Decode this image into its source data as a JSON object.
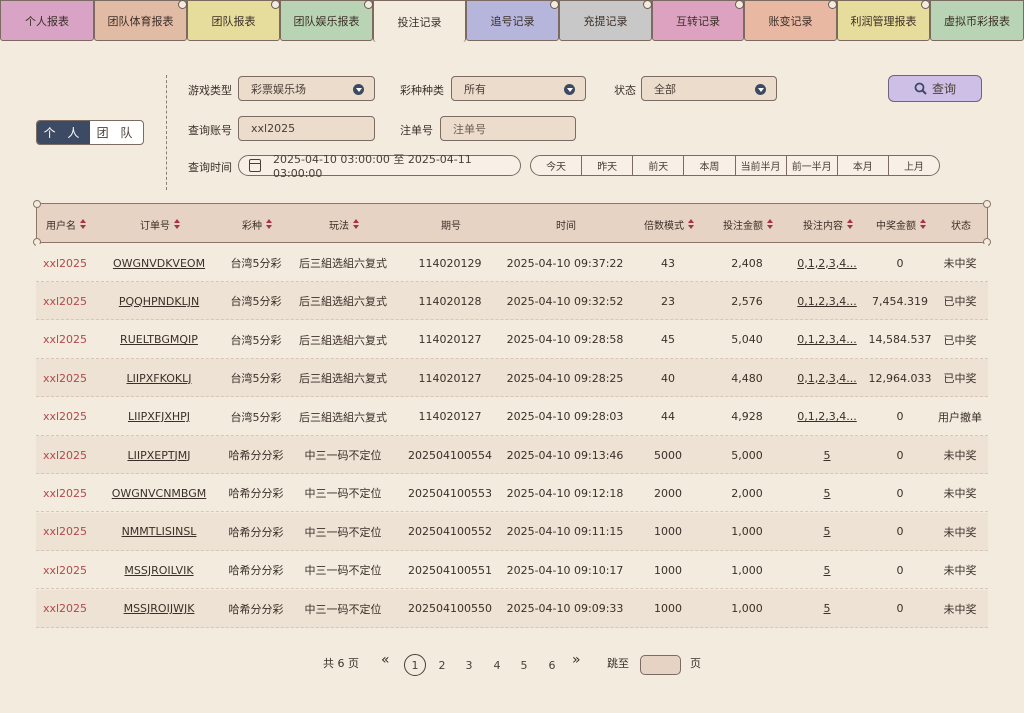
{
  "tabs": [
    {
      "label": "个人报表",
      "color": "#d9a3c6",
      "active": false
    },
    {
      "label": "团队体育报表",
      "color": "#e2bba5",
      "active": false
    },
    {
      "label": "团队报表",
      "color": "#e6dc9c",
      "active": false
    },
    {
      "label": "团队娱乐报表",
      "color": "#b8d4b4",
      "active": false
    },
    {
      "label": "投注记录",
      "color": "#f4ebdf",
      "active": true
    },
    {
      "label": "追号记录",
      "color": "#b6b6dc",
      "active": false
    },
    {
      "label": "充提记录",
      "color": "#c8c8c8",
      "active": false
    },
    {
      "label": "互转记录",
      "color": "#dda2c0",
      "active": false
    },
    {
      "label": "账变记录",
      "color": "#e8b8a2",
      "active": false
    },
    {
      "label": "利润管理报表",
      "color": "#e6dc9c",
      "active": false
    },
    {
      "label": "虚拟币彩报表",
      "color": "#b8d4b4",
      "active": false
    }
  ],
  "scope": {
    "personal": "个 人",
    "team": "团 队"
  },
  "filters": {
    "game_type_label": "游戏类型",
    "game_type_value": "彩票娱乐场",
    "lottery_label": "彩种种类",
    "lottery_value": "所有",
    "status_label": "状态",
    "status_value": "全部",
    "account_label": "查询账号",
    "account_value": "xxl2025",
    "order_label": "注单号",
    "order_placeholder": "注单号",
    "time_label": "查询时间",
    "time_range": "2025-04-10 03:00:00 至 2025-04-11 03:00:00",
    "quick_ranges": [
      "今天",
      "昨天",
      "前天",
      "本周",
      "当前半月",
      "前一半月",
      "本月",
      "上月"
    ],
    "search_label": "查询"
  },
  "table": {
    "headers": [
      "用户名",
      "订单号",
      "彩种",
      "玩法",
      "期号",
      "时间",
      "倍数模式",
      "投注金额",
      "投注内容",
      "中奖金额",
      "状态"
    ],
    "rows": [
      [
        "xxl2025",
        "OWGNVDKVEOM",
        "台湾5分彩",
        "后三組选組六复式",
        "114020129",
        "2025-04-10 09:37:22",
        "43",
        "2,408",
        "0,1,2,3,4...",
        "0",
        "未中奖"
      ],
      [
        "xxl2025",
        "PQQHPNDKLJN",
        "台湾5分彩",
        "后三組选組六复式",
        "114020128",
        "2025-04-10 09:32:52",
        "23",
        "2,576",
        "0,1,2,3,4...",
        "7,454.319",
        "已中奖"
      ],
      [
        "xxl2025",
        "RUELTBGMQIP",
        "台湾5分彩",
        "后三組选組六复式",
        "114020127",
        "2025-04-10 09:28:58",
        "45",
        "5,040",
        "0,1,2,3,4...",
        "14,584.537",
        "已中奖"
      ],
      [
        "xxl2025",
        "LIIPXFKOKLJ",
        "台湾5分彩",
        "后三組选組六复式",
        "114020127",
        "2025-04-10 09:28:25",
        "40",
        "4,480",
        "0,1,2,3,4...",
        "12,964.033",
        "已中奖"
      ],
      [
        "xxl2025",
        "LIIPXFJXHPJ",
        "台湾5分彩",
        "后三組选組六复式",
        "114020127",
        "2025-04-10 09:28:03",
        "44",
        "4,928",
        "0,1,2,3,4...",
        "0",
        "用户撤单"
      ],
      [
        "xxl2025",
        "LIIPXEPTJMJ",
        "哈希分分彩",
        "中三一码不定位",
        "202504100554",
        "2025-04-10 09:13:46",
        "5000",
        "5,000",
        "5",
        "0",
        "未中奖"
      ],
      [
        "xxl2025",
        "OWGNVCNMBGM",
        "哈希分分彩",
        "中三一码不定位",
        "202504100553",
        "2025-04-10 09:12:18",
        "2000",
        "2,000",
        "5",
        "0",
        "未中奖"
      ],
      [
        "xxl2025",
        "NMMTLISINSL",
        "哈希分分彩",
        "中三一码不定位",
        "202504100552",
        "2025-04-10 09:11:15",
        "1000",
        "1,000",
        "5",
        "0",
        "未中奖"
      ],
      [
        "xxl2025",
        "MSSJROILVIK",
        "哈希分分彩",
        "中三一码不定位",
        "202504100551",
        "2025-04-10 09:10:17",
        "1000",
        "1,000",
        "5",
        "0",
        "未中奖"
      ],
      [
        "xxl2025",
        "MSSJROIJWJK",
        "哈希分分彩",
        "中三一码不定位",
        "202504100550",
        "2025-04-10 09:09:33",
        "1000",
        "1,000",
        "5",
        "0",
        "未中奖"
      ]
    ]
  },
  "pagination": {
    "total_label": "共 6 页",
    "first_icon": "double-chevron-left-icon",
    "pages": [
      "1",
      "2",
      "3",
      "4",
      "5",
      "6"
    ],
    "current": "1",
    "last_icon": "double-chevron-right-icon",
    "jump_label": "跳至",
    "page_suffix": "页"
  },
  "colors": {
    "accent": "#3d4a64",
    "user_text": "#b04a4a",
    "sort_arrow": "#a53348",
    "search_button": "#cdbfe6"
  }
}
